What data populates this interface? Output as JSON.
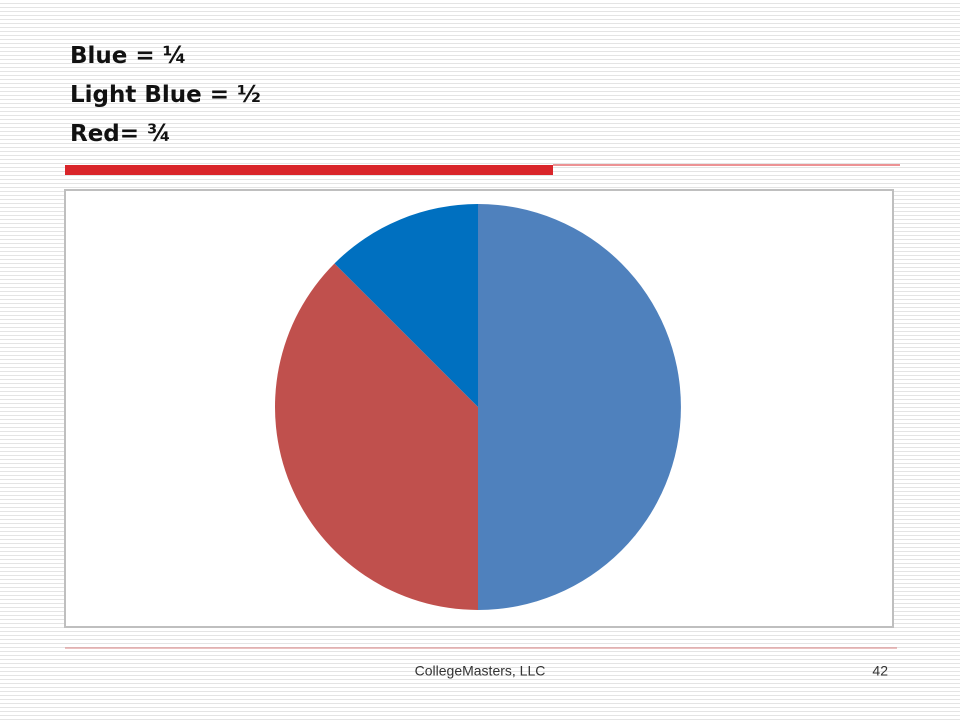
{
  "slide": {
    "title_lines": [
      "Blue = ¼",
      "Light Blue = ½",
      "Red= ¾"
    ],
    "footer": "CollegeMasters, LLC",
    "page_number": 42
  },
  "chart_data": {
    "type": "pie",
    "categories": [
      null,
      null,
      null
    ],
    "values": [
      50,
      37.5,
      12.5
    ],
    "colors": [
      "#4f81bd",
      "#c0504d",
      "#0070c0"
    ]
  }
}
